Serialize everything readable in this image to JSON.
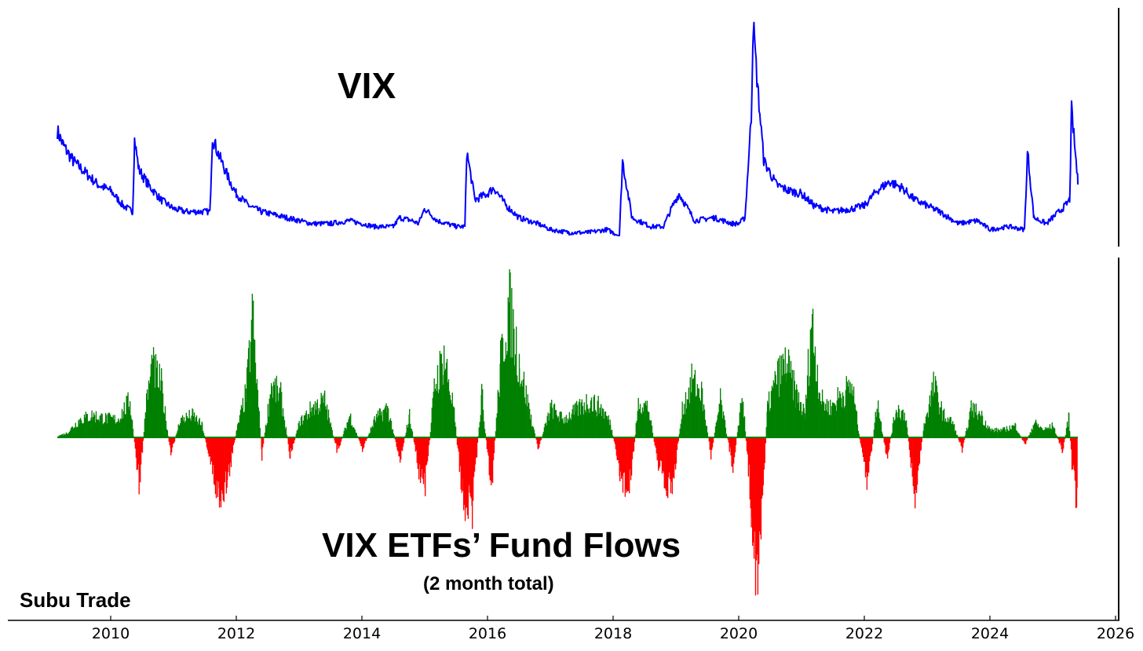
{
  "brand": "Subu Trade",
  "chart_data": [
    {
      "type": "line",
      "title": "VIX",
      "x_range": [
        2008.2,
        2026
      ],
      "ylim": [
        10,
        83
      ],
      "colors": {
        "line": "#0000ff"
      },
      "series": [
        {
          "x": [
            2009.15,
            2009.25,
            2009.4,
            2009.6,
            2009.8,
            2010.0,
            2010.2,
            2010.35,
            2010.38,
            2010.45,
            2010.6,
            2010.8,
            2011.0,
            2011.2,
            2011.4,
            2011.58,
            2011.62,
            2011.7,
            2011.8,
            2011.9,
            2012.0,
            2012.2,
            2012.4,
            2012.6,
            2012.8,
            2013.0,
            2013.2,
            2013.5,
            2013.8,
            2014.0,
            2014.2,
            2014.5,
            2014.6,
            2014.8,
            2014.9,
            2015.0,
            2015.2,
            2015.5,
            2015.64,
            2015.67,
            2015.8,
            2016.0,
            2016.1,
            2016.3,
            2016.5,
            2016.8,
            2017.0,
            2017.3,
            2017.6,
            2017.9,
            2018.0,
            2018.1,
            2018.15,
            2018.3,
            2018.6,
            2018.8,
            2018.95,
            2019.05,
            2019.3,
            2019.6,
            2019.9,
            2020.0,
            2020.1,
            2020.2,
            2020.23,
            2020.3,
            2020.4,
            2020.6,
            2020.8,
            2021.0,
            2021.2,
            2021.5,
            2021.8,
            2022.0,
            2022.2,
            2022.4,
            2022.6,
            2022.8,
            2023.0,
            2023.2,
            2023.5,
            2023.8,
            2024.0,
            2024.3,
            2024.55,
            2024.6,
            2024.7,
            2024.9,
            2025.0,
            2025.2,
            2025.27,
            2025.3,
            2025.4
          ],
          "y": [
            45,
            40,
            35,
            31,
            27,
            25,
            20,
            18,
            42,
            32,
            27,
            22,
            19,
            18,
            18,
            18,
            43,
            38,
            33,
            28,
            24,
            20,
            18,
            17,
            16,
            15,
            14,
            14,
            15,
            14,
            13,
            13,
            16,
            15,
            14,
            19,
            15,
            13,
            13,
            38,
            22,
            24,
            26,
            20,
            16,
            14,
            12,
            11,
            11,
            12,
            11,
            10,
            35,
            16,
            13,
            13,
            20,
            24,
            15,
            16,
            14,
            14,
            16,
            50,
            81,
            60,
            35,
            27,
            25,
            24,
            20,
            18,
            19,
            20,
            25,
            28,
            26,
            22,
            20,
            18,
            14,
            15,
            12,
            13,
            12,
            38,
            16,
            14,
            16,
            20,
            22,
            52,
            28
          ]
        }
      ]
    },
    {
      "type": "bar",
      "title": "VIX ETFs’ Fund Flows",
      "subtitle": "(2 month total)",
      "x_range": [
        2008.2,
        2026
      ],
      "ylim": [
        -1.05,
        1
      ],
      "colors": {
        "positive": "#008000",
        "negative": "#ff0000"
      },
      "series": [
        {
          "x": [
            2009.15,
            2009.3,
            2009.5,
            2009.7,
            2009.9,
            2010.1,
            2010.3,
            2010.45,
            2010.55,
            2010.65,
            2010.8,
            2010.95,
            2011.1,
            2011.3,
            2011.45,
            2011.6,
            2011.7,
            2011.85,
            2012.0,
            2012.15,
            2012.25,
            2012.4,
            2012.55,
            2012.7,
            2012.85,
            2013.0,
            2013.2,
            2013.4,
            2013.6,
            2013.8,
            2014.0,
            2014.2,
            2014.4,
            2014.6,
            2014.75,
            2014.9,
            2015.0,
            2015.15,
            2015.3,
            2015.45,
            2015.6,
            2015.75,
            2015.9,
            2016.05,
            2016.2,
            2016.33,
            2016.5,
            2016.65,
            2016.8,
            2017.0,
            2017.2,
            2017.4,
            2017.6,
            2017.8,
            2017.95,
            2018.1,
            2018.25,
            2018.4,
            2018.55,
            2018.7,
            2018.85,
            2018.95,
            2019.1,
            2019.25,
            2019.4,
            2019.55,
            2019.7,
            2019.9,
            2020.05,
            2020.2,
            2020.3,
            2020.45,
            2020.6,
            2020.75,
            2020.9,
            2021.05,
            2021.15,
            2021.3,
            2021.45,
            2021.6,
            2021.8,
            2021.95,
            2022.05,
            2022.2,
            2022.35,
            2022.5,
            2022.65,
            2022.8,
            2022.95,
            2023.1,
            2023.25,
            2023.4,
            2023.55,
            2023.7,
            2023.85,
            2024.0,
            2024.2,
            2024.4,
            2024.55,
            2024.7,
            2024.85,
            2025.0,
            2025.15,
            2025.25,
            2025.3,
            2025.38
          ],
          "y": [
            0.01,
            0.03,
            0.12,
            0.15,
            0.13,
            0.12,
            0.25,
            -0.35,
            0.2,
            0.48,
            0.35,
            -0.12,
            0.12,
            0.15,
            0.08,
            -0.2,
            -0.4,
            -0.3,
            0.05,
            0.3,
            0.8,
            -0.12,
            0.35,
            0.28,
            -0.12,
            0.1,
            0.2,
            0.25,
            -0.1,
            0.15,
            -0.08,
            0.12,
            0.2,
            -0.15,
            0.15,
            -0.22,
            -0.35,
            0.35,
            0.55,
            0.2,
            -0.4,
            -0.5,
            0.3,
            -0.38,
            0.5,
            0.9,
            0.5,
            0.2,
            -0.08,
            0.2,
            0.12,
            0.18,
            0.25,
            0.2,
            0.1,
            -0.25,
            -0.38,
            0.25,
            0.2,
            -0.15,
            -0.38,
            -0.3,
            0.2,
            0.38,
            0.3,
            -0.12,
            0.25,
            -0.2,
            0.3,
            -0.5,
            -1.0,
            0.2,
            0.4,
            0.5,
            0.3,
            0.15,
            0.8,
            0.25,
            0.2,
            0.28,
            0.35,
            -0.1,
            -0.3,
            0.25,
            -0.15,
            0.2,
            0.15,
            -0.4,
            0.1,
            0.35,
            0.15,
            0.1,
            -0.08,
            0.2,
            0.15,
            0.05,
            0.05,
            0.08,
            -0.05,
            0.1,
            0.05,
            0.08,
            -0.1,
            0.15,
            -0.2,
            -0.45
          ]
        }
      ]
    }
  ],
  "x_axis": {
    "ticks": [
      2010,
      2012,
      2014,
      2016,
      2018,
      2020,
      2022,
      2024,
      2026
    ],
    "tick_labels": [
      "2010",
      "2012",
      "2014",
      "2016",
      "2018",
      "2020",
      "2022",
      "2024",
      "2026"
    ]
  }
}
